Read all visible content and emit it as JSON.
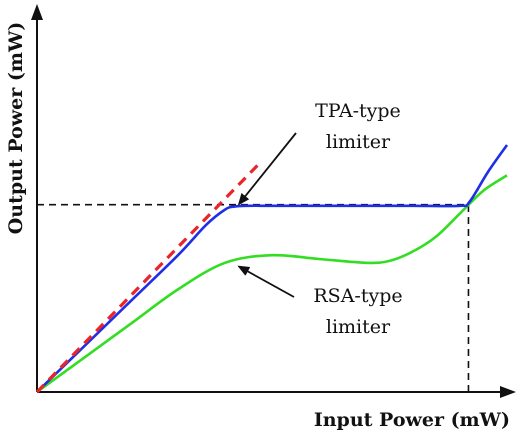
{
  "chart_data": {
    "type": "line",
    "title": "",
    "xlabel": "Input Power (mW)",
    "ylabel": "Output Power (mW)",
    "axis_ticks": false,
    "grid": false,
    "xlim": [
      0,
      10
    ],
    "ylim": [
      0,
      10
    ],
    "reference_lines": [
      {
        "type": "horizontal",
        "y": 4.93,
        "from_x": 0,
        "to_x": 9.18,
        "style": "dashed",
        "color": "#111111"
      },
      {
        "type": "vertical",
        "x": 9.18,
        "from_y": 0,
        "to_y": 4.93,
        "style": "dashed",
        "color": "#111111"
      }
    ],
    "series": [
      {
        "color": "#e8252b",
        "style": "dashed",
        "x": [
          0.0,
          4.72
        ],
        "y": [
          0.0,
          6.0
        ]
      },
      {
        "color": "#1f2fe6",
        "style": "solid",
        "x": [
          0.0,
          1.0,
          2.0,
          3.0,
          3.6,
          4.0,
          4.2,
          4.5,
          5.0,
          6.0,
          7.0,
          8.0,
          9.0,
          9.2,
          9.6,
          10.0
        ],
        "y": [
          0.0,
          1.2,
          2.4,
          3.6,
          4.4,
          4.8,
          4.88,
          4.9,
          4.9,
          4.9,
          4.9,
          4.9,
          4.9,
          5.0,
          5.8,
          6.5
        ]
      },
      {
        "color": "#33dd22",
        "style": "solid",
        "x": [
          0.0,
          1.0,
          2.0,
          3.0,
          4.0,
          5.0,
          6.0,
          7.0,
          7.5,
          8.0,
          8.5,
          9.0,
          9.5,
          10.0
        ],
        "y": [
          0.0,
          0.9,
          1.8,
          2.7,
          3.4,
          3.6,
          3.5,
          3.4,
          3.45,
          3.7,
          4.1,
          4.7,
          5.3,
          5.7
        ]
      }
    ],
    "annotations": [
      {
        "text": [
          "TPA-type",
          "limiter"
        ],
        "points_to": [
          4.3,
          4.95
        ]
      },
      {
        "text": [
          "RSA-type",
          "limiter"
        ],
        "points_to": [
          4.3,
          3.3
        ]
      }
    ]
  }
}
